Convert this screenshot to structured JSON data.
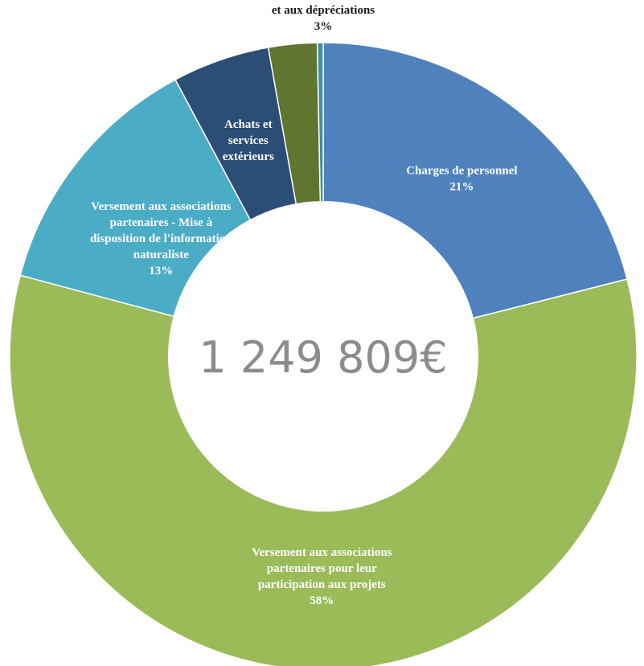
{
  "chart_data": {
    "type": "pie",
    "donut": true,
    "center_label": "1 249 809€",
    "units": "%",
    "slices": [
      {
        "label": [
          "Charges de personnel"
        ],
        "value": 21,
        "value_label": "21%",
        "color": "#4f81bd"
      },
      {
        "label": [
          "Versement aux associations",
          "partenaires pour leur",
          "participation aux projets"
        ],
        "value": 58,
        "value_label": "58%",
        "color": "#9bbb59"
      },
      {
        "label": [
          "Versement aux associations",
          "partenaires - Mise à",
          "disposition de l'information",
          "naturaliste"
        ],
        "value": 13,
        "value_label": "13%",
        "color": "#4bacc6"
      },
      {
        "label": [
          "Achats et",
          "services",
          "extérieurs"
        ],
        "value": 5,
        "value_label": "",
        "color": "#2c4d75"
      },
      {
        "label": [
          "et aux dépréciations"
        ],
        "value": 2.5,
        "value_label": "3%",
        "color": "#5f7530"
      },
      {
        "label": [],
        "value": 0.3,
        "value_label": "",
        "color": "#3d8ea3"
      }
    ]
  }
}
